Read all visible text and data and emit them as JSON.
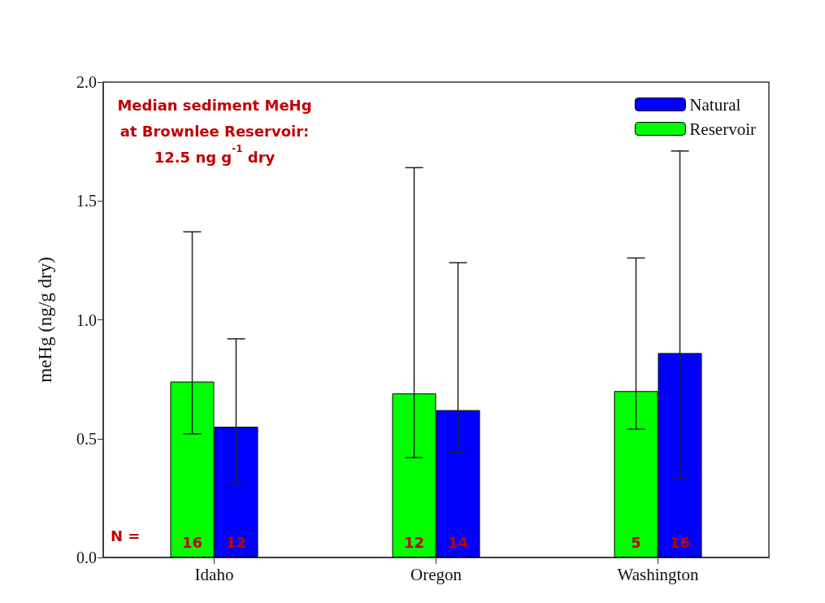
{
  "chart_data": {
    "type": "bar",
    "ylabel": "meHg (ng/g dry)",
    "categories": [
      "Idaho",
      "Oregon",
      "Washington"
    ],
    "series": [
      {
        "name": "Reservoir",
        "color": "#00ff00",
        "values": [
          0.74,
          0.69,
          0.7
        ],
        "errors": [
          [
            0.52,
            1.37
          ],
          [
            0.42,
            1.64
          ],
          [
            0.54,
            1.26
          ]
        ]
      },
      {
        "name": "Natural",
        "color": "#0000ff",
        "values": [
          0.55,
          0.62,
          0.86
        ],
        "errors": [
          [
            0.31,
            0.92
          ],
          [
            0.44,
            1.24
          ],
          [
            0.33,
            1.71
          ]
        ]
      }
    ],
    "ylim": [
      0,
      2.0
    ],
    "yticks": [
      {
        "value": 0,
        "label": "0.0"
      },
      {
        "value": 0.5,
        "label": "0.5"
      },
      {
        "value": 1.0,
        "label": "1.0"
      },
      {
        "value": 1.5,
        "label": "1.5"
      },
      {
        "value": 2.0,
        "label": "2.0"
      }
    ],
    "annotations": [
      "Median sediment MeHg\nat Brownlee Reservoir:\n12.5 ng g$^{-1}$ dry",
      "N =",
      {
        "text": "16",
        "x": "Idaho",
        "y": 0
      },
      {
        "text": "12",
        "x": "Idaho",
        "y": 0
      },
      {
        "text": "12",
        "x": "Oregon",
        "y": 0
      },
      {
        "text": "14",
        "x": "Oregon",
        "y": 0
      },
      {
        "text": "5",
        "x": "Washington",
        "y": 0
      },
      {
        "text": "16",
        "x": "Washington",
        "y": 0
      }
    ],
    "legend": "top right",
    "grid": false
  }
}
